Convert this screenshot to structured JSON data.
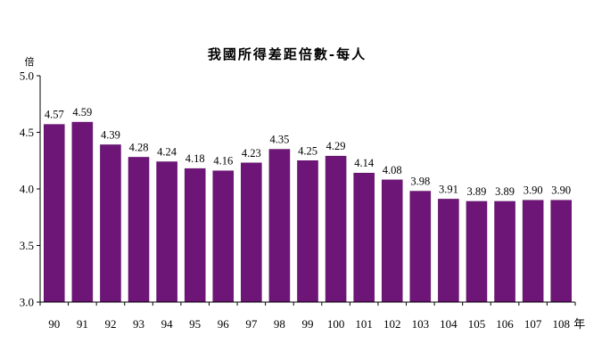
{
  "chart_data": {
    "type": "bar",
    "title": "我國所得差距倍數-每人",
    "ylabel": "倍",
    "xunit": "年",
    "categories": [
      "90",
      "91",
      "92",
      "93",
      "94",
      "95",
      "96",
      "97",
      "98",
      "99",
      "100",
      "101",
      "102",
      "103",
      "104",
      "105",
      "106",
      "107",
      "108"
    ],
    "values": [
      4.57,
      4.59,
      4.39,
      4.28,
      4.24,
      4.18,
      4.16,
      4.23,
      4.35,
      4.25,
      4.29,
      4.14,
      4.08,
      3.98,
      3.91,
      3.89,
      3.89,
      3.9,
      3.9
    ],
    "value_labels": [
      "4.57",
      "4.59",
      "4.39",
      "4.28",
      "4.24",
      "4.18",
      "4.16",
      "4.23",
      "4.35",
      "4.25",
      "4.29",
      "4.14",
      "4.08",
      "3.98",
      "3.91",
      "3.89",
      "3.89",
      "3.90",
      "3.90"
    ],
    "ylim": [
      3.0,
      5.0
    ],
    "yticks": [
      "3.0",
      "3.5",
      "4.0",
      "4.5",
      "5.0"
    ],
    "bar_color": "#6e1578",
    "grid": false,
    "legend": "none"
  }
}
